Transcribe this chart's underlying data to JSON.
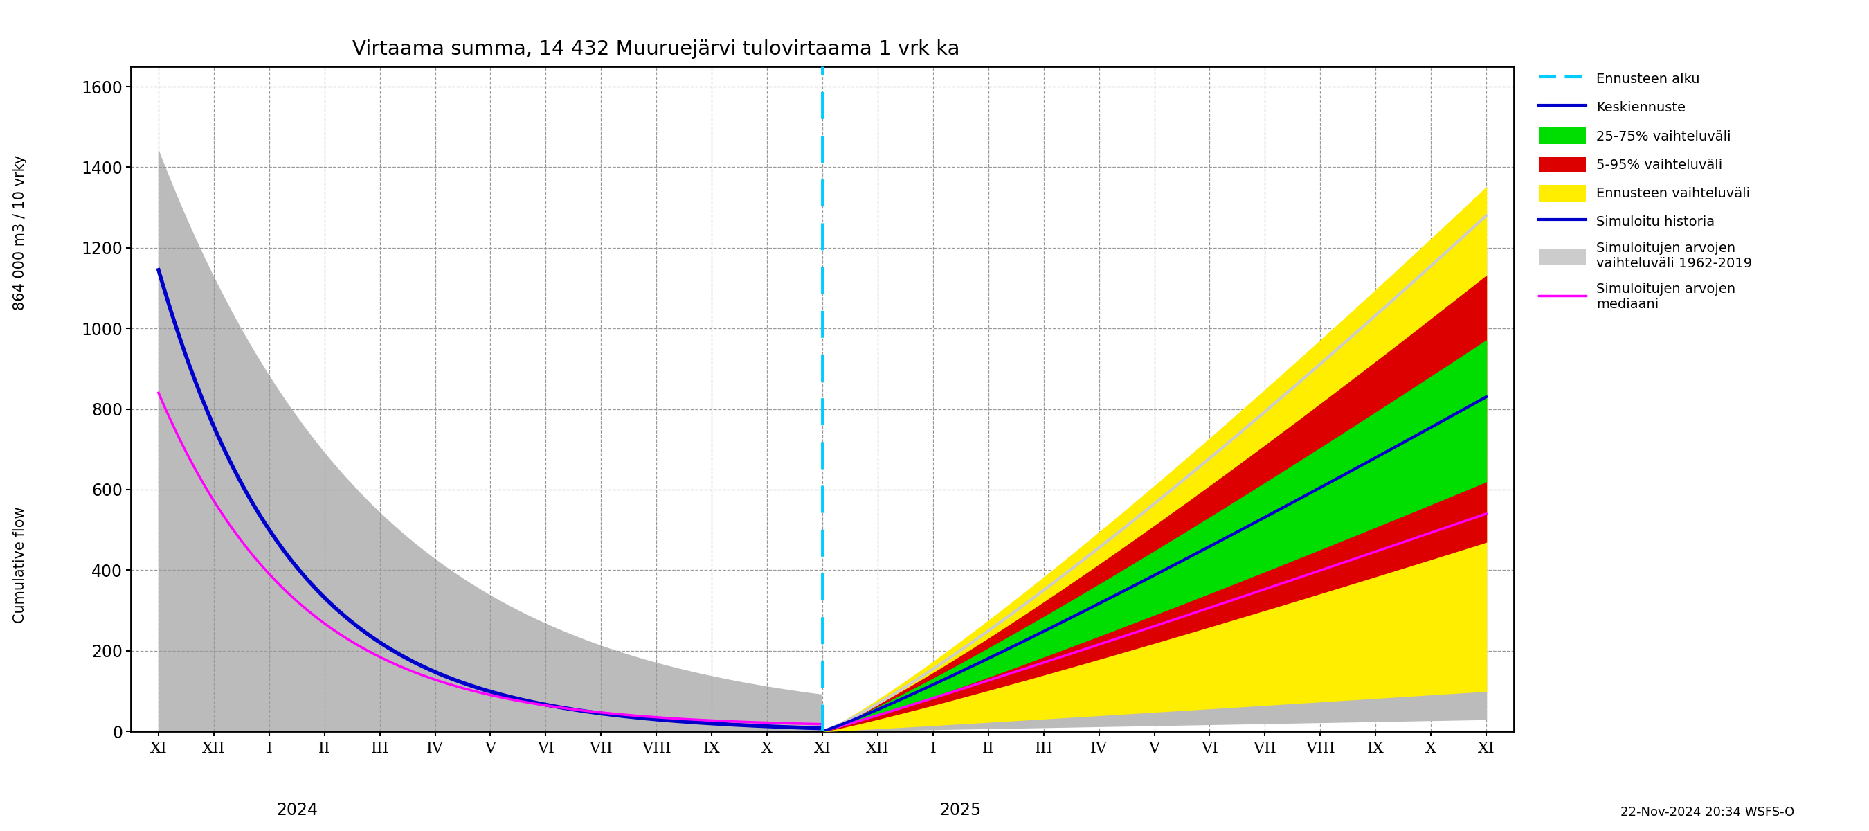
{
  "title": "Virtaama summa, 14 432 Muuruejärvi tulovirtaama 1 vrk ka",
  "ylabel_top": "864 000 m3 / 10 vrky",
  "ylabel_bottom": "Cumulative flow",
  "footnote": "22-Nov-2024 20:34 WSFS-O",
  "ylim": [
    0,
    1650
  ],
  "yticks": [
    0,
    200,
    400,
    600,
    800,
    1000,
    1200,
    1400,
    1600
  ],
  "xf": 12,
  "background_color": "#ffffff",
  "grid_color": "#999999",
  "colors": {
    "blue": "#0000cc",
    "magenta": "#ff00ff",
    "cyan": "#00ccff",
    "gray": "#bbbbbb",
    "yellow": "#ffee00",
    "red": "#dd0000",
    "green": "#00dd00",
    "gray_sim": "#bbbbbb"
  }
}
